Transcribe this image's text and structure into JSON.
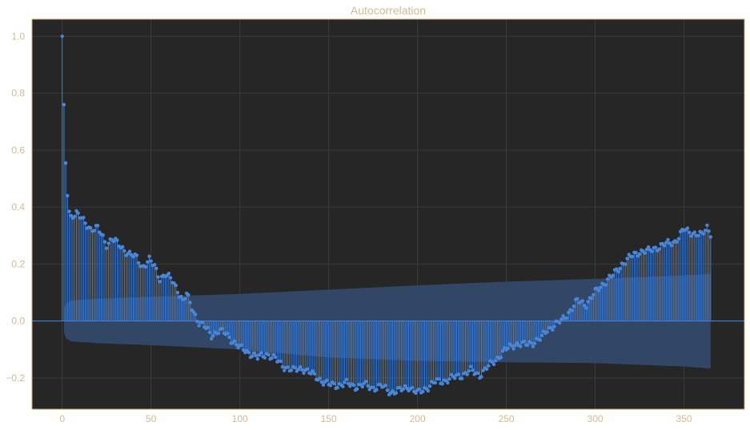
{
  "colors": {
    "figure_background": "#ffffff",
    "plot_background": "#262626",
    "frame": "#c8a874",
    "grid": "#3b3b3b",
    "text": "#d2bb8e",
    "stem": "#3f7fd6",
    "marker": "#4a86d8",
    "confidence_band": "#344a6e",
    "zero_line": "#3f7fd6"
  },
  "chart_data": {
    "type": "scatter",
    "subtype": "stem",
    "title": "Autocorrelation",
    "xlabel": "",
    "ylabel": "",
    "xlim": [
      -17,
      384
    ],
    "ylim": [
      -0.31,
      1.06
    ],
    "grid": true,
    "x_ticks": [
      0,
      50,
      100,
      150,
      200,
      250,
      300,
      350
    ],
    "y_ticks": [
      -0.2,
      0.0,
      0.2,
      0.4,
      0.6,
      0.8,
      1.0
    ],
    "y_tick_labels": [
      "−0.2",
      "0.0",
      "0.2",
      "0.4",
      "0.6",
      "0.8",
      "1.0"
    ],
    "lags": {
      "start": 0,
      "end": 365
    },
    "acf_anchors": [
      [
        0,
        1.0
      ],
      [
        1,
        0.76
      ],
      [
        2,
        0.555
      ],
      [
        3,
        0.44
      ],
      [
        4,
        0.385
      ],
      [
        5,
        0.37
      ],
      [
        8,
        0.38
      ],
      [
        12,
        0.35
      ],
      [
        16,
        0.325
      ],
      [
        20,
        0.325
      ],
      [
        25,
        0.27
      ],
      [
        28,
        0.29
      ],
      [
        33,
        0.26
      ],
      [
        37,
        0.24
      ],
      [
        42,
        0.22
      ],
      [
        45,
        0.19
      ],
      [
        49,
        0.215
      ],
      [
        52,
        0.19
      ],
      [
        55,
        0.15
      ],
      [
        58,
        0.165
      ],
      [
        62,
        0.14
      ],
      [
        65,
        0.11
      ],
      [
        68,
        0.07
      ],
      [
        70,
        0.095
      ],
      [
        72,
        0.06
      ],
      [
        75,
        0.02
      ],
      [
        77,
        -0.005
      ],
      [
        80,
        -0.02
      ],
      [
        84,
        -0.05
      ],
      [
        88,
        -0.035
      ],
      [
        92,
        -0.045
      ],
      [
        96,
        -0.07
      ],
      [
        100,
        -0.095
      ],
      [
        105,
        -0.11
      ],
      [
        110,
        -0.13
      ],
      [
        115,
        -0.115
      ],
      [
        120,
        -0.135
      ],
      [
        125,
        -0.16
      ],
      [
        130,
        -0.175
      ],
      [
        135,
        -0.165
      ],
      [
        140,
        -0.185
      ],
      [
        145,
        -0.205
      ],
      [
        150,
        -0.225
      ],
      [
        155,
        -0.225
      ],
      [
        160,
        -0.22
      ],
      [
        165,
        -0.23
      ],
      [
        170,
        -0.225
      ],
      [
        175,
        -0.235
      ],
      [
        180,
        -0.23
      ],
      [
        185,
        -0.25
      ],
      [
        190,
        -0.245
      ],
      [
        195,
        -0.23
      ],
      [
        200,
        -0.255
      ],
      [
        205,
        -0.235
      ],
      [
        210,
        -0.215
      ],
      [
        215,
        -0.21
      ],
      [
        220,
        -0.2
      ],
      [
        225,
        -0.19
      ],
      [
        230,
        -0.175
      ],
      [
        235,
        -0.19
      ],
      [
        240,
        -0.16
      ],
      [
        245,
        -0.13
      ],
      [
        250,
        -0.1
      ],
      [
        255,
        -0.08
      ],
      [
        260,
        -0.085
      ],
      [
        265,
        -0.075
      ],
      [
        270,
        -0.06
      ],
      [
        273,
        -0.03
      ],
      [
        277,
        -0.015
      ],
      [
        281,
        0.0
      ],
      [
        285,
        0.03
      ],
      [
        290,
        0.07
      ],
      [
        295,
        0.06
      ],
      [
        300,
        0.1
      ],
      [
        305,
        0.135
      ],
      [
        310,
        0.16
      ],
      [
        315,
        0.2
      ],
      [
        320,
        0.225
      ],
      [
        325,
        0.245
      ],
      [
        330,
        0.245
      ],
      [
        335,
        0.26
      ],
      [
        340,
        0.27
      ],
      [
        345,
        0.28
      ],
      [
        350,
        0.32
      ],
      [
        355,
        0.31
      ],
      [
        360,
        0.3
      ],
      [
        363,
        0.33
      ],
      [
        365,
        0.31
      ]
    ],
    "confidence_band": {
      "anchors": [
        [
          1,
          0.04
        ],
        [
          2,
          0.06
        ],
        [
          5,
          0.072
        ],
        [
          20,
          0.078
        ],
        [
          50,
          0.085
        ],
        [
          100,
          0.095
        ],
        [
          150,
          0.11
        ],
        [
          200,
          0.125
        ],
        [
          250,
          0.138
        ],
        [
          300,
          0.148
        ],
        [
          350,
          0.16
        ],
        [
          365,
          0.165
        ]
      ],
      "lower_anchors": [
        [
          1,
          -0.04
        ],
        [
          2,
          -0.06
        ],
        [
          5,
          -0.072
        ],
        [
          20,
          -0.078
        ],
        [
          50,
          -0.085
        ],
        [
          100,
          -0.1
        ],
        [
          150,
          -0.128
        ],
        [
          200,
          -0.14
        ],
        [
          250,
          -0.145
        ],
        [
          300,
          -0.148
        ],
        [
          350,
          -0.16
        ],
        [
          365,
          -0.167
        ]
      ]
    }
  }
}
